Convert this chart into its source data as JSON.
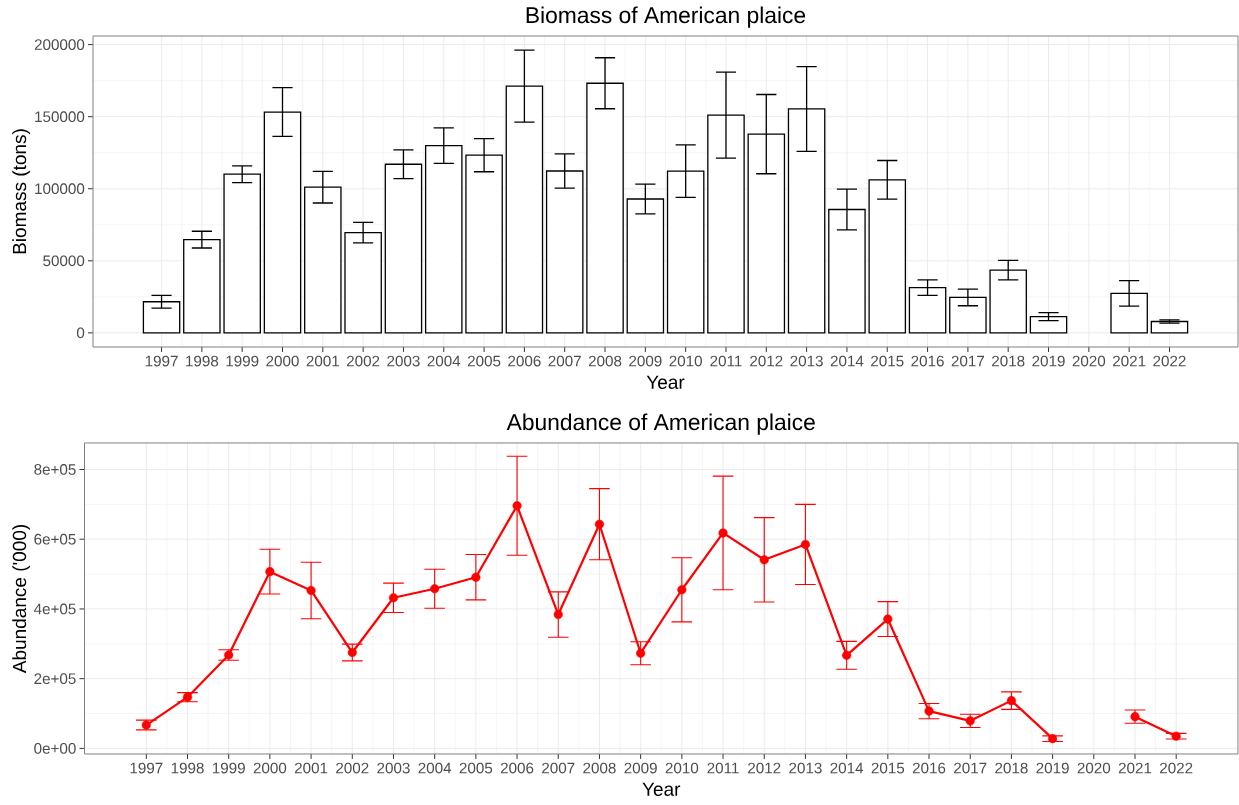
{
  "chart_data": [
    {
      "type": "bar",
      "title": "Biomass of American plaice",
      "xlabel": "Year",
      "ylabel": "Biomass (tons)",
      "x": [
        1997,
        1998,
        1999,
        2000,
        2001,
        2002,
        2003,
        2004,
        2005,
        2006,
        2007,
        2008,
        2009,
        2010,
        2011,
        2012,
        2013,
        2014,
        2015,
        2016,
        2017,
        2018,
        2019,
        2020,
        2021,
        2022
      ],
      "values": [
        21600,
        64700,
        110100,
        153200,
        101100,
        69600,
        117000,
        129900,
        123300,
        171200,
        112300,
        173200,
        92900,
        112200,
        151100,
        137900,
        155400,
        85600,
        106200,
        31400,
        24600,
        43500,
        11300,
        null,
        27400,
        7900
      ],
      "errors": [
        4400,
        5800,
        5800,
        16900,
        11000,
        7100,
        10000,
        12300,
        11500,
        25000,
        11900,
        17700,
        10300,
        18200,
        29800,
        27500,
        29400,
        14100,
        13400,
        5400,
        5800,
        6800,
        2800,
        null,
        8900,
        1100
      ],
      "color": "#ffffff",
      "xlim": [
        1995.3,
        2023.7
      ],
      "ylim": [
        -9800,
        206000
      ],
      "xticks": [
        1997,
        1998,
        1999,
        2000,
        2001,
        2002,
        2003,
        2004,
        2005,
        2006,
        2007,
        2008,
        2009,
        2010,
        2011,
        2012,
        2013,
        2014,
        2015,
        2016,
        2017,
        2018,
        2019,
        2020,
        2021,
        2022
      ],
      "yticks": [
        0,
        50000,
        100000,
        150000,
        200000
      ],
      "grid": true
    },
    {
      "type": "line",
      "title": "Abundance of American plaice",
      "xlabel": "Year",
      "ylabel": "Abundance ('000)",
      "x": [
        1997,
        1998,
        1999,
        2000,
        2001,
        2002,
        2003,
        2004,
        2005,
        2006,
        2007,
        2008,
        2009,
        2010,
        2011,
        2012,
        2013,
        2014,
        2015,
        2016,
        2017,
        2018,
        2019,
        2020,
        2021,
        2022
      ],
      "values": [
        67000,
        147000,
        268000,
        507000,
        453000,
        275000,
        432000,
        458000,
        491000,
        696000,
        384000,
        643000,
        273000,
        455000,
        618000,
        541000,
        585000,
        267000,
        371000,
        107000,
        79000,
        137000,
        28000,
        null,
        91000,
        35000
      ],
      "errors": [
        14000,
        13000,
        15000,
        64000,
        81000,
        24000,
        42000,
        56000,
        65000,
        142000,
        65000,
        102000,
        33000,
        92000,
        163000,
        121000,
        115000,
        40000,
        50000,
        22000,
        19000,
        25000,
        8000,
        null,
        19000,
        8000
      ],
      "color": "#ff0000",
      "marker": "circle",
      "line_style": "solid",
      "xlim": [
        1995.5,
        2023.5
      ],
      "ylim": [
        -16000,
        876000
      ],
      "xticks": [
        1997,
        1998,
        1999,
        2000,
        2001,
        2002,
        2003,
        2004,
        2005,
        2006,
        2007,
        2008,
        2009,
        2010,
        2011,
        2012,
        2013,
        2014,
        2015,
        2016,
        2017,
        2018,
        2019,
        2020,
        2021,
        2022
      ],
      "yticks": [
        {
          "value": 0,
          "label": "0e+00"
        },
        {
          "value": 200000,
          "label": "2e+05"
        },
        {
          "value": 400000,
          "label": "4e+05"
        },
        {
          "value": 600000,
          "label": "6e+05"
        },
        {
          "value": 800000,
          "label": "8e+05"
        }
      ],
      "grid": true
    }
  ]
}
